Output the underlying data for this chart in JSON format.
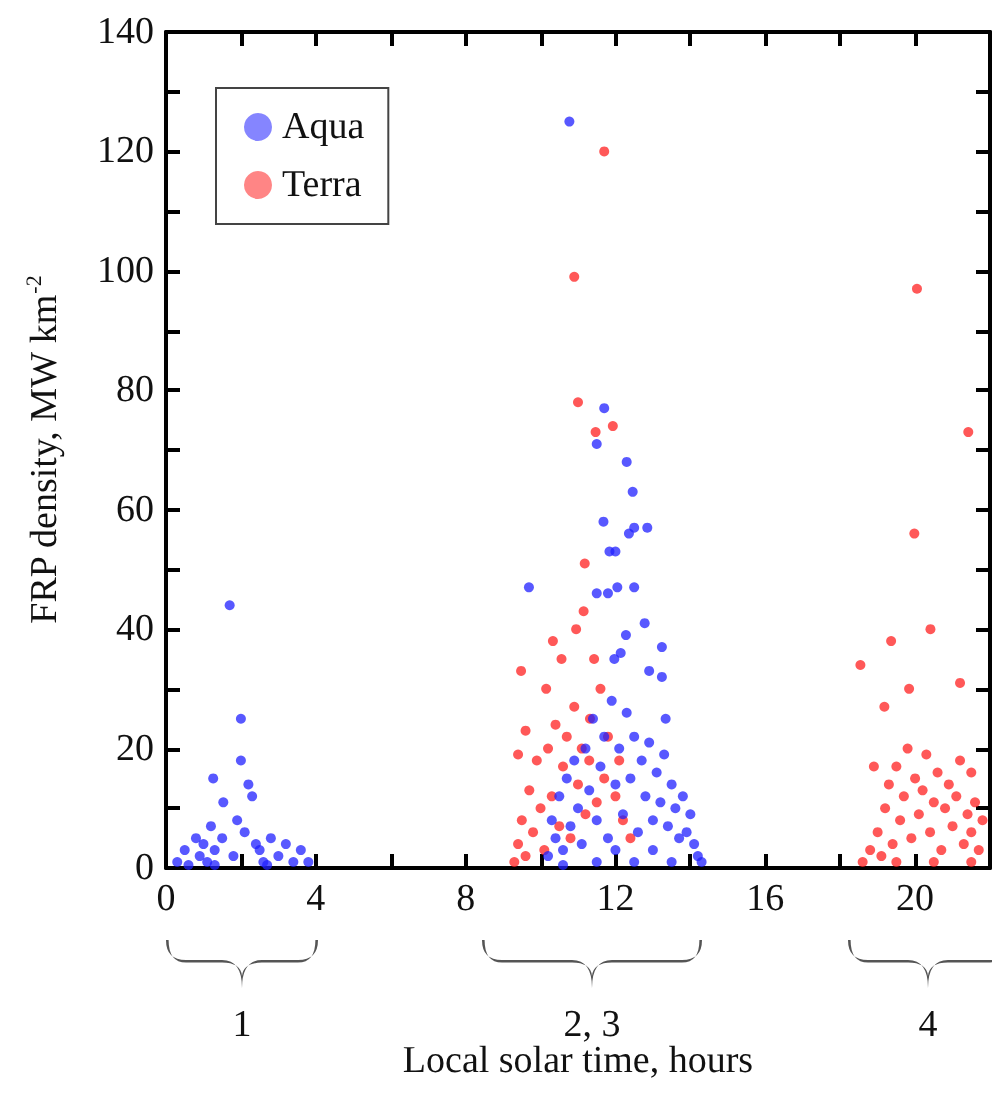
{
  "chart_data": {
    "type": "scatter",
    "xlabel": "Local solar time, hours",
    "ylabel": "FRP density, MW km$^{-2}$",
    "xlim": [
      0,
      22
    ],
    "xticks": [
      0,
      {
        "value": 2,
        "label": null
      },
      4,
      {
        "value": 6,
        "label": null
      },
      8,
      {
        "value": 10,
        "label": null
      },
      12,
      {
        "value": 14,
        "label": null
      },
      16,
      {
        "value": 18,
        "label": null
      },
      20
    ],
    "ylim": [
      0,
      140
    ],
    "yticks": [
      0,
      {
        "value": 10,
        "label": null
      },
      20,
      {
        "value": 30,
        "label": null
      },
      40,
      {
        "value": 50,
        "label": null
      },
      60,
      {
        "value": 70,
        "label": null
      },
      80,
      {
        "value": 90,
        "label": null
      },
      100,
      {
        "value": 110,
        "label": null
      },
      120,
      {
        "value": 130,
        "label": null
      },
      140
    ],
    "legend": "top left",
    "marker": "circle",
    "grid": false,
    "annotations": [
      "1",
      "2, 3",
      "4"
    ],
    "series": [
      {
        "name": "Aqua",
        "color": "#2020ff",
        "x": [
          0.3,
          0.5,
          0.6,
          0.8,
          0.9,
          1.0,
          1.1,
          1.2,
          1.3,
          1.26,
          1.5,
          1.53,
          1.7,
          1.8,
          1.9,
          2.0,
          2.0,
          2.1,
          2.2,
          2.3,
          2.4,
          2.5,
          2.6,
          2.8,
          3.0,
          3.2,
          3.4,
          3.6,
          3.8,
          1.3,
          2.7,
          10.2,
          10.3,
          10.4,
          10.5,
          10.6,
          10.7,
          10.8,
          10.9,
          11.0,
          11.1,
          11.2,
          11.3,
          11.4,
          11.5,
          11.6,
          11.7,
          11.8,
          11.9,
          12.0,
          12.1,
          12.2,
          12.3,
          12.4,
          12.5,
          12.6,
          12.7,
          12.8,
          12.9,
          13.0,
          13.1,
          13.2,
          13.3,
          13.4,
          13.5,
          13.6,
          13.7,
          13.8,
          13.9,
          14.0,
          14.1,
          14.2,
          14.3,
          10.6,
          11.5,
          12.5,
          13.5,
          12.0,
          13.0,
          10.77,
          9.69,
          11.7,
          11.5,
          12.3,
          12.46,
          11.68,
          12.5,
          12.85,
          12.36,
          11.84,
          12.0,
          12.5,
          11.5,
          11.8,
          12.05,
          12.78,
          12.28,
          12.14,
          13.24,
          13.24,
          12.9,
          11.97,
          13.34
        ],
        "values": [
          1,
          3,
          0.5,
          5,
          2,
          4,
          1,
          7,
          3,
          15,
          5,
          11,
          44,
          2,
          8,
          25,
          18,
          6,
          14,
          12,
          4,
          3,
          1,
          5,
          2,
          4,
          1,
          3,
          1,
          0.5,
          0.5,
          2,
          8,
          5,
          12,
          3,
          15,
          7,
          18,
          10,
          4,
          20,
          13,
          25,
          8,
          17,
          22,
          5,
          28,
          14,
          20,
          9,
          26,
          15,
          22,
          6,
          18,
          12,
          21,
          8,
          16,
          11,
          19,
          7,
          14,
          10,
          5,
          12,
          6,
          9,
          4,
          2,
          1,
          0.5,
          1,
          1,
          1,
          3,
          3,
          125,
          47,
          77,
          71,
          68,
          63,
          58,
          57,
          57,
          56,
          53,
          53,
          47,
          46,
          46,
          47,
          41,
          39,
          36,
          37,
          32,
          33,
          35,
          25
        ]
      },
      {
        "name": "Terra",
        "color": "#ff2020",
        "x": [
          9.3,
          9.4,
          9.5,
          9.6,
          9.7,
          9.8,
          9.9,
          10.0,
          10.1,
          10.2,
          10.3,
          10.4,
          10.5,
          10.6,
          10.7,
          10.8,
          10.9,
          11.0,
          11.1,
          11.2,
          11.3,
          11.32,
          11.5,
          11.6,
          11.7,
          11.8,
          12.0,
          12.1,
          12.2,
          12.4,
          9.4,
          9.6,
          11.7,
          10.9,
          11.0,
          11.47,
          11.93,
          11.18,
          11.15,
          10.95,
          10.33,
          10.56,
          11.43,
          9.48,
          10.15,
          18.6,
          18.8,
          19.0,
          19.1,
          19.2,
          19.3,
          19.4,
          19.5,
          19.6,
          19.7,
          19.8,
          19.9,
          20.0,
          20.1,
          20.2,
          20.3,
          20.4,
          20.5,
          20.6,
          20.7,
          20.8,
          20.9,
          21.0,
          21.1,
          21.2,
          21.3,
          21.4,
          21.5,
          21.6,
          21.7,
          21.8,
          19.5,
          20.5,
          21.5,
          18.9,
          21.5,
          20.05,
          19.98,
          21.42,
          20.41,
          19.36,
          18.54,
          21.2,
          19.84,
          19.18
        ],
        "values": [
          1,
          4,
          8,
          2,
          13,
          6,
          18,
          10,
          3,
          20,
          12,
          24,
          7,
          17,
          22,
          5,
          27,
          14,
          20,
          9,
          18,
          25,
          11,
          30,
          15,
          22,
          12,
          18,
          8,
          5,
          19,
          23,
          120,
          99,
          78,
          73,
          74,
          51,
          43,
          40,
          38,
          35,
          35,
          33,
          30,
          1,
          3,
          6,
          2,
          10,
          14,
          4,
          17,
          8,
          12,
          20,
          5,
          15,
          9,
          13,
          19,
          6,
          11,
          16,
          3,
          10,
          14,
          7,
          12,
          18,
          4,
          9,
          6,
          11,
          3,
          8,
          1,
          1,
          1,
          17,
          16,
          97,
          56,
          73,
          40,
          38,
          34,
          31,
          30,
          27
        ]
      }
    ]
  }
}
